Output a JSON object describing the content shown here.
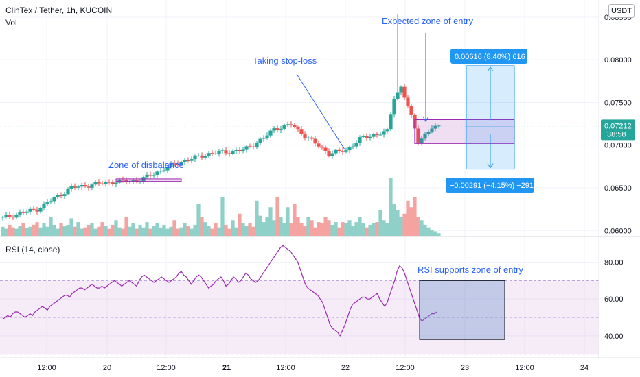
{
  "header": {
    "symbol": "ClinTex / Tether, 1h, KUCOIN",
    "vol_label": "Vol",
    "currency_button": "USDT"
  },
  "rsi_label": "RSI (14, close)",
  "price_badge": {
    "price": "0.07212",
    "timer": "38:58"
  },
  "annotations": {
    "zone_disbalance": "Zone of disbalance",
    "taking_stop_loss": "Taking stop-loss",
    "expected_entry": "Expected zone of entry",
    "rsi_supports": "RSI supports zone of entry",
    "target_label": "0.00616 (8.40%) 616",
    "stop_label": "−0.00291 (−4.15%) −291"
  },
  "colors": {
    "up": "#26a69a",
    "down": "#ef5350",
    "vol_up": "#8fd1c9",
    "vol_down": "#f5a3a1",
    "rsi_line": "#9c27b0",
    "annotation": "#2962ff",
    "current_price": "#26a69a"
  },
  "chart_data": [
    {
      "type": "candlestick",
      "title": "ClinTex / Tether, 1h, KUCOIN",
      "x_ticks": [
        "12:00",
        "20",
        "12:00",
        "21",
        "12:00",
        "22",
        "12:00",
        "23",
        "12:00",
        "24"
      ],
      "y_ticks": [
        "0.08500",
        "0.08000",
        "0.07500",
        "0.07000",
        "0.06500",
        "0.06000"
      ],
      "ylim": [
        0.0593,
        0.087
      ],
      "current_price": 0.07212,
      "key_closes": [
        {
          "x": 0,
          "value": 0.0615
        },
        {
          "x": 10,
          "value": 0.0625
        },
        {
          "x": 20,
          "value": 0.065
        },
        {
          "x": 30,
          "value": 0.0656
        },
        {
          "x": 40,
          "value": 0.0659
        },
        {
          "x": 50,
          "value": 0.0678
        },
        {
          "x": 60,
          "value": 0.069
        },
        {
          "x": 70,
          "value": 0.0694
        },
        {
          "x": 76,
          "value": 0.0708
        },
        {
          "x": 79,
          "value": 0.0719
        },
        {
          "x": 84,
          "value": 0.0724
        },
        {
          "x": 89,
          "value": 0.0708
        },
        {
          "x": 95,
          "value": 0.069
        },
        {
          "x": 100,
          "value": 0.0694
        },
        {
          "x": 104,
          "value": 0.0707
        },
        {
          "x": 108,
          "value": 0.0712
        },
        {
          "x": 112,
          "value": 0.0716
        },
        {
          "x": 114,
          "value": 0.0756
        },
        {
          "x": 116,
          "value": 0.0768
        },
        {
          "x": 118,
          "value": 0.0746
        },
        {
          "x": 121,
          "value": 0.0705
        },
        {
          "x": 125,
          "value": 0.072
        },
        {
          "x": 127,
          "value": 0.0721
        }
      ],
      "spike_high": {
        "x": 115,
        "value": 0.0853
      },
      "volume_relative": [
        0.15,
        0.12,
        0.18,
        0.14,
        0.12,
        0.16,
        0.2,
        0.13,
        0.15,
        0.18,
        0.22,
        0.14,
        0.2,
        0.15,
        0.3,
        0.18,
        0.12,
        0.2,
        0.16,
        0.18,
        0.28,
        0.15,
        0.22,
        0.12,
        0.14,
        0.18,
        0.2,
        0.12,
        0.15,
        0.22,
        0.16,
        0.12,
        0.18,
        0.25,
        0.14,
        0.12,
        0.3,
        0.15,
        0.2,
        0.12,
        0.18,
        0.14,
        0.22,
        0.12,
        0.16,
        0.2,
        0.14,
        0.18,
        0.12,
        0.15,
        0.25,
        0.12,
        0.14,
        0.2,
        0.16,
        0.12,
        0.18,
        0.5,
        0.3,
        0.22,
        0.16,
        0.12,
        0.2,
        0.14,
        0.6,
        0.18,
        0.12,
        0.25,
        0.14,
        0.35,
        0.2,
        0.16,
        0.2,
        0.15,
        0.55,
        0.32,
        0.22,
        0.3,
        0.45,
        0.25,
        0.6,
        0.3,
        0.2,
        0.45,
        0.2,
        0.5,
        0.3,
        0.2,
        0.16,
        0.3,
        0.25,
        0.14,
        0.22,
        0.2,
        0.3,
        0.25,
        0.18,
        0.22,
        0.14,
        0.22,
        0.2,
        0.25,
        0.16,
        0.22,
        0.3,
        0.2,
        0.14,
        0.18,
        0.2,
        0.22,
        0.4,
        0.25,
        0.2,
        0.9,
        0.5,
        0.4,
        0.3,
        0.35,
        0.55,
        0.45,
        0.6,
        0.3,
        0.25,
        0.18,
        0.14,
        0.1,
        0.08,
        0.05
      ],
      "positions": {
        "zone_disbalance_box": {
          "low": 0.06575,
          "high": 0.06605
        },
        "entry_box": {
          "low": 0.0702,
          "high": 0.073
        },
        "target_level": 0.0793,
        "stop_level": 0.0672
      }
    },
    {
      "type": "line",
      "title": "RSI (14, close)",
      "y_ticks": [
        "80.00",
        "60.00",
        "40.00"
      ],
      "ylim": [
        28,
        94
      ],
      "band": [
        30,
        70
      ],
      "mid": 50,
      "values": [
        49,
        50,
        51,
        50,
        52,
        53,
        53,
        52,
        51,
        50,
        51,
        52,
        51,
        53,
        54,
        55,
        56,
        55,
        54,
        56,
        57,
        58,
        59,
        60,
        61,
        62,
        62,
        61,
        63,
        64,
        65,
        66,
        66,
        65,
        66,
        67,
        68,
        67,
        66,
        66,
        67,
        66,
        67,
        68,
        69,
        70,
        69,
        68,
        67,
        68,
        69,
        70,
        69,
        68,
        67,
        70,
        72,
        73,
        72,
        71,
        70,
        69,
        70,
        71,
        72,
        71,
        70,
        69,
        70,
        71,
        72,
        74,
        75,
        73,
        72,
        70,
        68,
        70,
        72,
        73,
        72,
        70,
        68,
        66,
        67,
        68,
        70,
        71,
        72,
        70,
        67,
        68,
        70,
        72,
        71,
        69,
        70,
        72,
        74,
        73,
        71,
        70,
        69,
        70,
        72,
        74,
        76,
        78,
        80,
        82,
        84,
        86,
        88,
        89,
        88,
        87,
        86,
        84,
        82,
        80,
        76,
        72,
        68,
        66,
        65,
        64,
        63,
        62,
        60,
        58,
        54,
        50,
        46,
        44,
        43,
        42,
        40,
        43,
        46,
        50,
        54,
        57,
        58,
        59,
        60,
        61,
        61,
        60,
        60,
        61,
        62,
        63,
        60,
        58,
        56,
        58,
        62,
        66,
        70,
        75,
        78,
        77,
        74,
        70,
        66,
        62,
        58,
        54,
        50,
        48,
        49,
        50,
        51,
        52,
        52,
        53
      ],
      "box": {
        "low": 38,
        "high": 70
      }
    }
  ]
}
